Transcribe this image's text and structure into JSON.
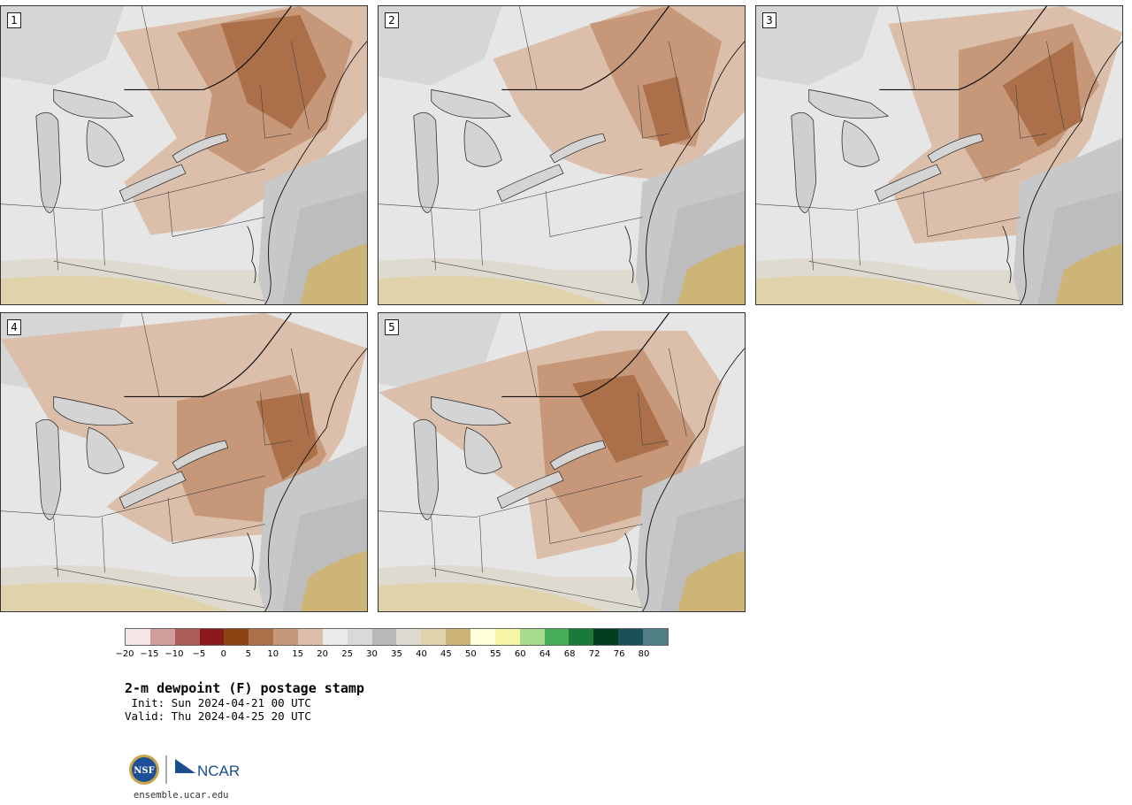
{
  "panels": [
    {
      "label": "1"
    },
    {
      "label": "2"
    },
    {
      "label": "3"
    },
    {
      "label": "4"
    },
    {
      "label": "5"
    }
  ],
  "colorbar": {
    "colors": [
      "#f5e6e6",
      "#d19c9c",
      "#ad5a5a",
      "#8a1a1a",
      "#8a4513",
      "#ab7049",
      "#c69779",
      "#dcbfab",
      "#ebebeb",
      "#d9d9d9",
      "#b8b8b8",
      "#dedad0",
      "#e0d2aa",
      "#cdb477",
      "#ffffd9",
      "#f5f5a5",
      "#a6dd8c",
      "#46ad57",
      "#1a7a3c",
      "#033e1f",
      "#1a5058",
      "#4f7e85"
    ],
    "tick_labels": [
      "−20",
      "−15",
      "−10",
      "−5",
      "0",
      "5",
      "10",
      "15",
      "20",
      "25",
      "30",
      "35",
      "40",
      "45",
      "50",
      "55",
      "60",
      "64",
      "68",
      "72",
      "76",
      "80"
    ]
  },
  "title": "2-m dewpoint (F) postage stamp",
  "init": " Init: Sun 2024-04-21 00 UTC",
  "valid": "Valid: Thu 2024-04-25 20 UTC",
  "footer": {
    "url": "ensemble.ucar.edu",
    "nsf_logo_text": "NSF",
    "ncar_logo_text": "NCAR"
  }
}
